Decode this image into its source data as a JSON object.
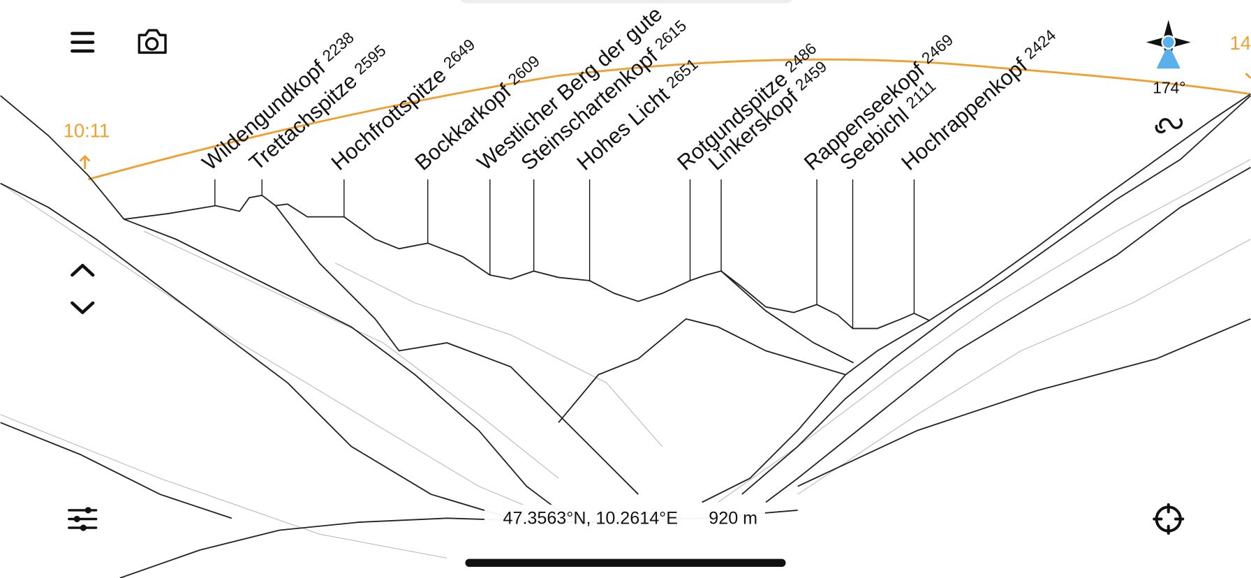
{
  "toolbar": {
    "sun_left_time": "10:11",
    "sun_right_time": "14",
    "heading": "174°"
  },
  "peaks": [
    {
      "name": "Wildengundkopf",
      "elevation": 2238
    },
    {
      "name": "Trettachspitze",
      "elevation": 2595
    },
    {
      "name": "Hochfrottspitze",
      "elevation": 2649
    },
    {
      "name": "Bockkarkopf",
      "elevation": 2609
    },
    {
      "name": "Westlicher Berg der gute"
    },
    {
      "name": "Steinschartenkopf",
      "elevation": 2615
    },
    {
      "name": "Hohes Licht",
      "elevation": 2651
    },
    {
      "name": "Rotgundspitze",
      "elevation": 2486
    },
    {
      "name": "Linkerskopf",
      "elevation": 2459
    },
    {
      "name": "Rappenseekopf",
      "elevation": 2469
    },
    {
      "name": "Seebichl",
      "elevation": 2111
    },
    {
      "name": "Hochrappenkopf",
      "elevation": 2424
    }
  ],
  "status": {
    "coordinates": "47.3563°N, 10.2614°E",
    "altitude": "920 m"
  }
}
